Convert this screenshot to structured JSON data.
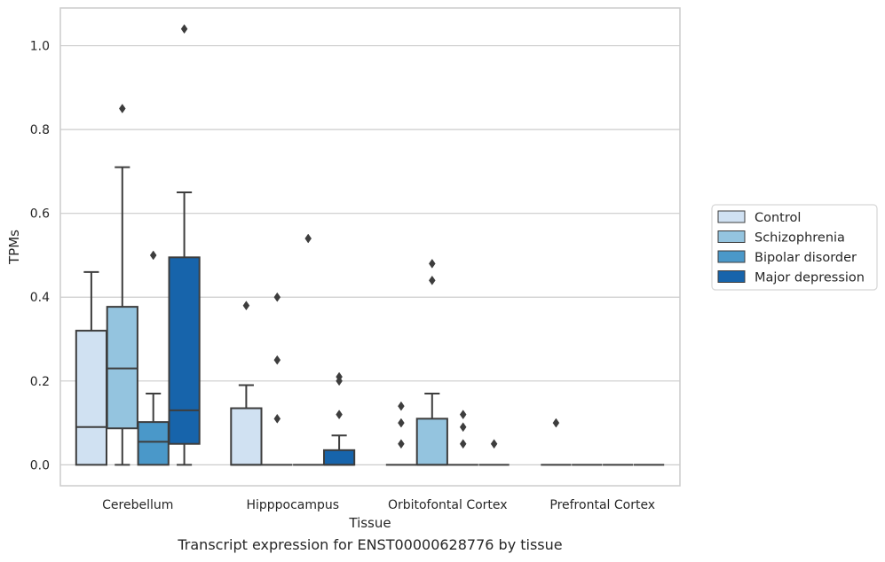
{
  "caption": "Transcript expression for ENST00000628776 by tissue",
  "chart_data": {
    "type": "box",
    "xlabel": "Tissue",
    "ylabel": "TPMs",
    "ylim": [
      -0.05,
      1.09
    ],
    "yticks": [
      0.0,
      0.2,
      0.4,
      0.6,
      0.8,
      1.0
    ],
    "ytick_labels": [
      "0.0",
      "0.2",
      "0.4",
      "0.6",
      "0.8",
      "1.0"
    ],
    "grid": true,
    "legend_position": "right",
    "categories": [
      "Cerebellum",
      "Hipppocampus",
      "Orbitofontal Cortex",
      "Prefrontal Cortex"
    ],
    "series": [
      {
        "name": "Control",
        "color": "#d0e1f2",
        "boxes": [
          {
            "whislo": 0.0,
            "q1": 0.0,
            "med": 0.09,
            "q3": 0.32,
            "whishi": 0.46,
            "fliers": []
          },
          {
            "whislo": 0.0,
            "q1": 0.0,
            "med": 0.0,
            "q3": 0.135,
            "whishi": 0.19,
            "fliers": [
              0.38
            ]
          },
          {
            "whislo": 0.0,
            "q1": 0.0,
            "med": 0.0,
            "q3": 0.0,
            "whishi": 0.0,
            "fliers": [
              0.14,
              0.1,
              0.05
            ]
          },
          {
            "whislo": 0.0,
            "q1": 0.0,
            "med": 0.0,
            "q3": 0.0,
            "whishi": 0.0,
            "fliers": [
              0.1
            ]
          }
        ]
      },
      {
        "name": "Schizophrenia",
        "color": "#94c4df",
        "boxes": [
          {
            "whislo": 0.0,
            "q1": 0.087,
            "med": 0.23,
            "q3": 0.377,
            "whishi": 0.71,
            "fliers": [
              0.85
            ]
          },
          {
            "whislo": 0.0,
            "q1": 0.0,
            "med": 0.0,
            "q3": 0.0,
            "whishi": 0.0,
            "fliers": [
              0.4,
              0.25,
              0.11
            ]
          },
          {
            "whislo": 0.0,
            "q1": 0.0,
            "med": 0.0,
            "q3": 0.11,
            "whishi": 0.17,
            "fliers": [
              0.48,
              0.44
            ]
          },
          {
            "whislo": 0.0,
            "q1": 0.0,
            "med": 0.0,
            "q3": 0.0,
            "whishi": 0.0,
            "fliers": []
          }
        ]
      },
      {
        "name": "Bipolar disorder",
        "color": "#4a98c9",
        "boxes": [
          {
            "whislo": 0.0,
            "q1": 0.0,
            "med": 0.055,
            "q3": 0.102,
            "whishi": 0.17,
            "fliers": [
              0.5
            ]
          },
          {
            "whislo": 0.0,
            "q1": 0.0,
            "med": 0.0,
            "q3": 0.0,
            "whishi": 0.0,
            "fliers": [
              0.54
            ]
          },
          {
            "whislo": 0.0,
            "q1": 0.0,
            "med": 0.0,
            "q3": 0.0,
            "whishi": 0.0,
            "fliers": [
              0.12,
              0.09,
              0.05
            ]
          },
          {
            "whislo": 0.0,
            "q1": 0.0,
            "med": 0.0,
            "q3": 0.0,
            "whishi": 0.0,
            "fliers": []
          }
        ]
      },
      {
        "name": "Major depression",
        "color": "#1764ab",
        "boxes": [
          {
            "whislo": 0.0,
            "q1": 0.05,
            "med": 0.13,
            "q3": 0.495,
            "whishi": 0.65,
            "fliers": [
              1.04
            ]
          },
          {
            "whislo": 0.0,
            "q1": 0.0,
            "med": 0.0,
            "q3": 0.035,
            "whishi": 0.07,
            "fliers": [
              0.21,
              0.2,
              0.12
            ]
          },
          {
            "whislo": 0.0,
            "q1": 0.0,
            "med": 0.0,
            "q3": 0.0,
            "whishi": 0.0,
            "fliers": [
              0.05
            ]
          },
          {
            "whislo": 0.0,
            "q1": 0.0,
            "med": 0.0,
            "q3": 0.0,
            "whishi": 0.0,
            "fliers": []
          }
        ]
      }
    ]
  }
}
